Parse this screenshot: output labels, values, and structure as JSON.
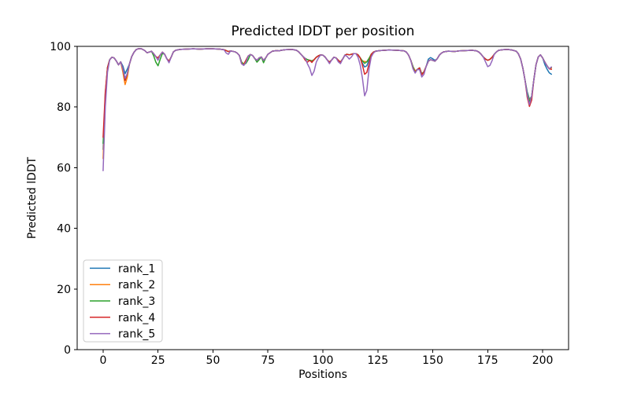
{
  "chart_data": {
    "type": "line",
    "title": "Predicted lDDT per position",
    "xlabel": "Positions",
    "ylabel": "Predicted lDDT",
    "xlim": [
      -11.8,
      211.8
    ],
    "ylim": [
      0,
      100
    ],
    "xticks": [
      0,
      25,
      50,
      75,
      100,
      125,
      150,
      175,
      200
    ],
    "yticks": [
      0,
      20,
      40,
      60,
      80,
      100
    ],
    "grid": false,
    "legend_position": "lower left",
    "line_width": 1.5,
    "spine_color": "#000000",
    "legend_border_color": "#cccccc",
    "base_points": [
      [
        0,
        65
      ],
      [
        1,
        83
      ],
      [
        2,
        93
      ],
      [
        3,
        95.6
      ],
      [
        4,
        96.4
      ],
      [
        5,
        96.2
      ],
      [
        6,
        95.2
      ],
      [
        7,
        93.9
      ],
      [
        8,
        94.9
      ],
      [
        9,
        92.5
      ],
      [
        10,
        88.8
      ],
      [
        11,
        91
      ],
      [
        12,
        94.2
      ],
      [
        13,
        96.6
      ],
      [
        14,
        98
      ],
      [
        15,
        98.9
      ],
      [
        16,
        99.2
      ],
      [
        17,
        99.3
      ],
      [
        18,
        99
      ],
      [
        19,
        98.6
      ],
      [
        20,
        97.9
      ],
      [
        21,
        98.1
      ],
      [
        22,
        98.4
      ],
      [
        23,
        97.6
      ],
      [
        24,
        96.6
      ],
      [
        25,
        96.2
      ],
      [
        26,
        97.2
      ],
      [
        27,
        98.1
      ],
      [
        28,
        97.4
      ],
      [
        29,
        95.9
      ],
      [
        30,
        95.1
      ],
      [
        31,
        96.5
      ],
      [
        32,
        98.2
      ],
      [
        33,
        98.7
      ],
      [
        35,
        99
      ],
      [
        38,
        99.1
      ],
      [
        41,
        99.2
      ],
      [
        44,
        99.1
      ],
      [
        47,
        99.2
      ],
      [
        50,
        99.2
      ],
      [
        53,
        99.1
      ],
      [
        55,
        98.9
      ],
      [
        56,
        98.6
      ],
      [
        57,
        98.3
      ],
      [
        58,
        98.5
      ],
      [
        60,
        98.2
      ],
      [
        61,
        97.8
      ],
      [
        62,
        97
      ],
      [
        63,
        94.8
      ],
      [
        64,
        94.2
      ],
      [
        65,
        95.4
      ],
      [
        66,
        96.8
      ],
      [
        67,
        97.3
      ],
      [
        68,
        97
      ],
      [
        69,
        96
      ],
      [
        70,
        95.4
      ],
      [
        71,
        96.2
      ],
      [
        72,
        96.5
      ],
      [
        73,
        95.4
      ],
      [
        74,
        96.2
      ],
      [
        75,
        97.4
      ],
      [
        77,
        98.4
      ],
      [
        79,
        98.6
      ],
      [
        80,
        98.5
      ],
      [
        81,
        98.7
      ],
      [
        83,
        98.9
      ],
      [
        86,
        99
      ],
      [
        88,
        98.7
      ],
      [
        89,
        98.2
      ],
      [
        90,
        97.4
      ],
      [
        91,
        96.6
      ],
      [
        92,
        96
      ],
      [
        93,
        95.6
      ],
      [
        94,
        95.4
      ],
      [
        95,
        95.2
      ],
      [
        96,
        95.6
      ],
      [
        97,
        96.4
      ],
      [
        98,
        96.9
      ],
      [
        99,
        97.2
      ],
      [
        100,
        97.1
      ],
      [
        101,
        96.5
      ],
      [
        102,
        95.5
      ],
      [
        103,
        94.8
      ],
      [
        104,
        95.5
      ],
      [
        105,
        96.4
      ],
      [
        106,
        96.2
      ],
      [
        107,
        95.4
      ],
      [
        108,
        94.8
      ],
      [
        109,
        95.8
      ],
      [
        110,
        97.1
      ],
      [
        111,
        97.4
      ],
      [
        112,
        97.2
      ],
      [
        113,
        97.4
      ],
      [
        114,
        97.6
      ],
      [
        115,
        97.6
      ],
      [
        116,
        97.2
      ],
      [
        117,
        96.2
      ],
      [
        118,
        95.2
      ],
      [
        119,
        94.6
      ],
      [
        120,
        94.9
      ],
      [
        121,
        96
      ],
      [
        122,
        97.4
      ],
      [
        123,
        98.1
      ],
      [
        124,
        98.4
      ],
      [
        126,
        98.6
      ],
      [
        130,
        98.8
      ],
      [
        134,
        98.7
      ],
      [
        137,
        98.5
      ],
      [
        138,
        98.1
      ],
      [
        139,
        97.1
      ],
      [
        140,
        95.4
      ],
      [
        141,
        93.3
      ],
      [
        142,
        91.9
      ],
      [
        143,
        92.4
      ],
      [
        144,
        92.9
      ],
      [
        145,
        90.9
      ],
      [
        146,
        91.6
      ],
      [
        147,
        93.4
      ],
      [
        148,
        95.1
      ],
      [
        149,
        95.6
      ],
      [
        150,
        95.4
      ],
      [
        151,
        95.1
      ],
      [
        152,
        95.9
      ],
      [
        153,
        97.1
      ],
      [
        154,
        97.8
      ],
      [
        155,
        98.2
      ],
      [
        157,
        98.4
      ],
      [
        160,
        98.3
      ],
      [
        162,
        98.5
      ],
      [
        165,
        98.6
      ],
      [
        168,
        98.7
      ],
      [
        170,
        98.5
      ],
      [
        171,
        98.1
      ],
      [
        172,
        97.4
      ],
      [
        173,
        96.5
      ],
      [
        174,
        95.8
      ],
      [
        175,
        95.4
      ],
      [
        176,
        95.7
      ],
      [
        177,
        96.4
      ],
      [
        178,
        97.4
      ],
      [
        179,
        98.2
      ],
      [
        180,
        98.7
      ],
      [
        182,
        98.9
      ],
      [
        184,
        99
      ],
      [
        186,
        98.8
      ],
      [
        188,
        98.4
      ],
      [
        189,
        97.5
      ],
      [
        190,
        95.8
      ],
      [
        191,
        92.8
      ],
      [
        192,
        88.8
      ],
      [
        193,
        84.5
      ],
      [
        194,
        81.8
      ],
      [
        195,
        83.5
      ],
      [
        196,
        89
      ],
      [
        197,
        94
      ],
      [
        198,
        96.5
      ],
      [
        199,
        97.2
      ],
      [
        200,
        96.2
      ],
      [
        201,
        94.8
      ],
      [
        202,
        93.6
      ],
      [
        203,
        92.6
      ],
      [
        204,
        92.2
      ]
    ],
    "series": [
      {
        "name": "rank_1",
        "color": "#1f77b4",
        "overrides": {
          "0": 66,
          "1": 84.5,
          "9": 93.5,
          "10": 91,
          "11": 92.5,
          "118": 94.4,
          "119": 93.2,
          "120": 93.6,
          "121": 95.5,
          "148": 95.8,
          "149": 96.3,
          "150": 95.9,
          "151": 95.4,
          "193": 85,
          "194": 82.5,
          "201": 94,
          "202": 92.5,
          "203": 91.3,
          "204": 90.8
        }
      },
      {
        "name": "rank_2",
        "color": "#ff7f0e",
        "overrides": {
          "0": 63,
          "9": 91.5,
          "10": 87.4,
          "11": 89.8,
          "119": 95,
          "194": 82,
          "204": 92.8
        }
      },
      {
        "name": "rank_3",
        "color": "#2ca02c",
        "overrides": {
          "0": 68,
          "23": 96.9,
          "24": 94.8,
          "25": 93.6,
          "26": 95.8,
          "27": 97.7,
          "64": 94,
          "65": 94.4,
          "66": 95.6,
          "70": 94.8,
          "71": 95.6,
          "73": 94.6,
          "119": 94.4,
          "142": 91.5,
          "194": 81.6,
          "204": 93.1
        }
      },
      {
        "name": "rank_4",
        "color": "#d62728",
        "overrides": {
          "0": 70,
          "1": 85,
          "63": 94.3,
          "64": 93.8,
          "92": 95.4,
          "93": 94.8,
          "95": 94.7,
          "118": 93.8,
          "119": 90.8,
          "120": 91.4,
          "121": 94.2,
          "141": 92.8,
          "142": 91.4,
          "145": 90.6,
          "193": 83.2,
          "194": 80.2,
          "195": 82.3,
          "204": 92.4
        }
      },
      {
        "name": "rank_5",
        "color": "#9467bd",
        "overrides": {
          "0": 59,
          "1": 80,
          "2": 91.5,
          "10": 89.5,
          "25": 95.4,
          "30": 94.6,
          "56": 97.8,
          "57": 97.4,
          "63": 94.3,
          "64": 93.7,
          "65": 94.8,
          "93": 94.2,
          "94": 92.8,
          "95": 90.4,
          "96": 91.8,
          "97": 94.8,
          "98": 96.2,
          "103": 94.3,
          "107": 94.9,
          "108": 94.3,
          "111": 96.7,
          "112": 95.8,
          "113": 96.5,
          "116": 96.4,
          "117": 93.8,
          "118": 89.5,
          "119": 83.7,
          "120": 85.5,
          "121": 92.5,
          "122": 96.5,
          "123": 97.8,
          "141": 92.6,
          "142": 91.2,
          "144": 92.3,
          "145": 89.9,
          "146": 90.8,
          "174": 94.9,
          "175": 93.3,
          "176": 93.7,
          "177": 95.3,
          "193": 84,
          "194": 80.8,
          "204": 93.2
        }
      }
    ]
  }
}
